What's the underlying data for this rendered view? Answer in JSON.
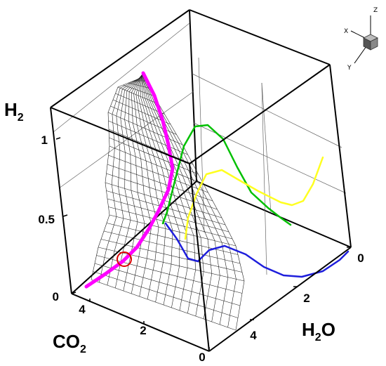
{
  "chart_data": {
    "type": "3d-line-surface",
    "axes": {
      "z": {
        "label_main": "H",
        "label_sub": "2",
        "ticks": [
          "0",
          "0.5",
          "1"
        ],
        "range": [
          0,
          1.3
        ]
      },
      "x": {
        "label_main": "CO",
        "label_sub": "2",
        "ticks": [
          "4",
          "2",
          "0"
        ],
        "range": [
          0,
          5
        ]
      },
      "y": {
        "label_main": "H",
        "label_sub": "2",
        "label_end": "O",
        "ticks": [
          "0",
          "2",
          "4"
        ],
        "range": [
          0,
          5.5
        ]
      }
    },
    "triad": {
      "x": "X",
      "y": "Y",
      "z": "Z"
    },
    "series": [
      {
        "color": "#ff00ff",
        "style": "thick"
      },
      {
        "color": "#00c000",
        "style": "line"
      },
      {
        "color": "#ffff20",
        "style": "line"
      },
      {
        "color": "#1e1edc",
        "style": "line"
      }
    ],
    "markers": [
      {
        "shape": "circle",
        "color": "#dd0000"
      }
    ],
    "surface": {
      "style": "wireframe",
      "color": "#222222"
    }
  }
}
